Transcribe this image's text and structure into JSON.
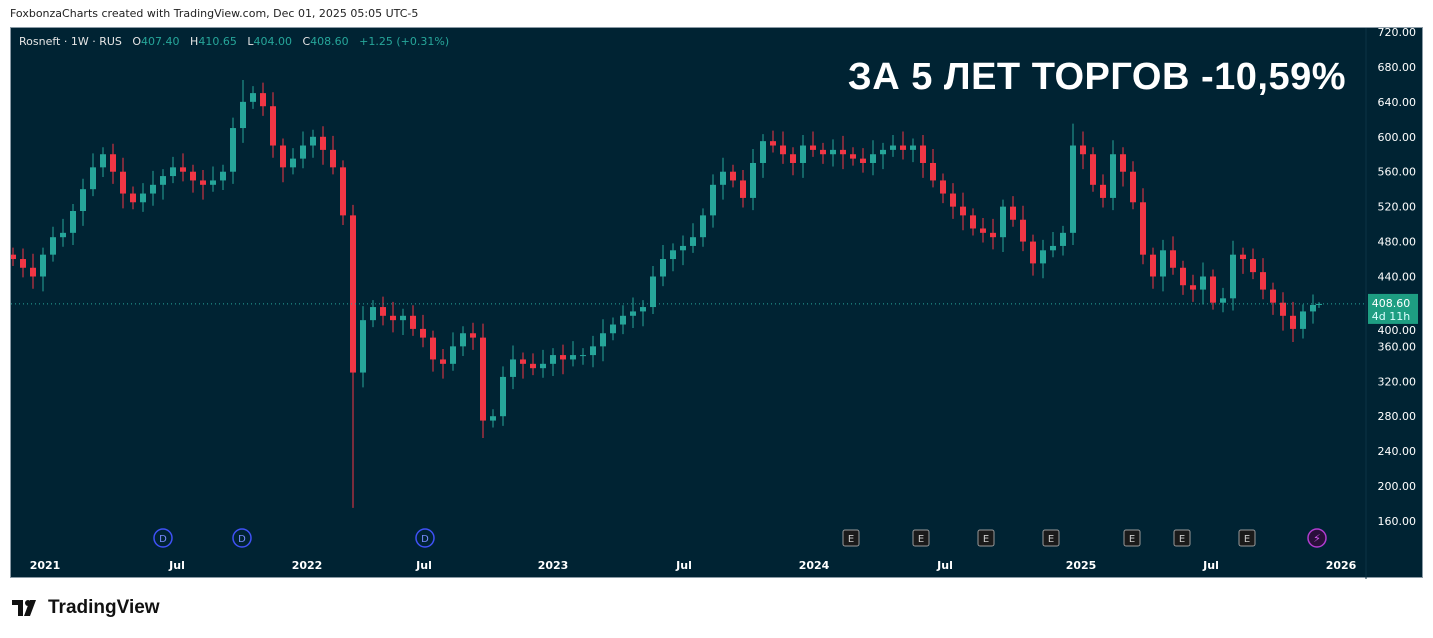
{
  "credit": "FoxbonzaCharts created with TradingView.com, Dec 01, 2025 05:05 UTC-5",
  "legend": {
    "symbol": "Rosneft · 1W · RUS",
    "o_label": "O",
    "o": "407.40",
    "h_label": "H",
    "h": "410.65",
    "l_label": "L",
    "l": "404.00",
    "c_label": "C",
    "c": "408.60",
    "change": "+1.25 (+0.31%)"
  },
  "headline": "ЗА 5 ЛЕТ ТОРГОВ -10,59%",
  "price_label": {
    "price": "408.60",
    "countdown": "4d 11h"
  },
  "colors": {
    "up": "#26a69a",
    "down": "#f23645",
    "bg": "#002333",
    "label": "#1e9e82"
  },
  "markers": {
    "dividends": [
      "D",
      "D",
      "D"
    ],
    "earnings": [
      "E",
      "E",
      "E",
      "E",
      "E",
      "E",
      "E"
    ],
    "events": [
      "⚡"
    ]
  },
  "logo": "TradingView",
  "chart_data": {
    "type": "candlestick",
    "interval": "2 weeks (approx.)",
    "ylim": [
      160,
      720
    ],
    "y_ticks": [
      "720.00",
      "680.00",
      "640.00",
      "600.00",
      "560.00",
      "520.00",
      "480.00",
      "440.00",
      "400.00",
      "360.00",
      "320.00",
      "280.00",
      "240.00",
      "200.00",
      "160.00"
    ],
    "x_ticks": [
      "2021",
      "Jul",
      "2022",
      "Jul",
      "2023",
      "Jul",
      "2024",
      "Jul",
      "2025",
      "Jul",
      "2026"
    ],
    "closes": [
      460,
      450,
      440,
      465,
      485,
      490,
      515,
      540,
      565,
      580,
      560,
      535,
      525,
      535,
      545,
      555,
      565,
      560,
      550,
      545,
      550,
      560,
      610,
      640,
      650,
      635,
      590,
      565,
      575,
      590,
      600,
      585,
      565,
      510,
      330,
      390,
      405,
      395,
      390,
      395,
      380,
      370,
      345,
      340,
      360,
      375,
      370,
      275,
      280,
      325,
      345,
      340,
      335,
      340,
      350,
      345,
      350,
      350,
      360,
      375,
      385,
      395,
      400,
      405,
      440,
      460,
      470,
      475,
      485,
      510,
      545,
      560,
      550,
      530,
      570,
      595,
      590,
      580,
      570,
      590,
      585,
      580,
      585,
      580,
      575,
      570,
      580,
      585,
      590,
      585,
      590,
      570,
      550,
      535,
      520,
      510,
      495,
      490,
      485,
      520,
      505,
      480,
      455,
      470,
      475,
      490,
      590,
      580,
      545,
      530,
      580,
      560,
      525,
      465,
      440,
      470,
      450,
      430,
      425,
      440,
      410,
      415,
      465,
      460,
      445,
      425,
      410,
      395,
      380,
      400,
      407.4
    ],
    "extremes": {
      "high_2021": 665,
      "crash_low_2022": 175,
      "low_2022": 255,
      "high_2025": 615,
      "low_2025": 365
    },
    "last_candle": {
      "open": 407.4,
      "high": 410.65,
      "low": 404.0,
      "close": 408.6
    }
  }
}
